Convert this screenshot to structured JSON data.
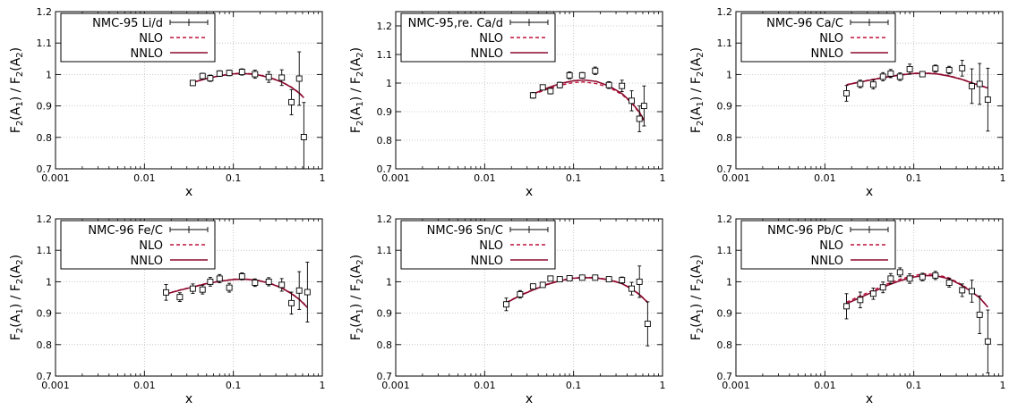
{
  "colors": {
    "data": "#000000",
    "nlo": "#c0103a",
    "nnlo": "#8b0a2e",
    "frame": "#000000",
    "grid": "#bbbbbb"
  },
  "chart_data": [
    {
      "type": "scatter",
      "xlabel": "x",
      "ylabel": "F2(A1) / F2(A2)",
      "ylabel_parts": {
        "F": "F",
        "n": "2",
        "open": "(A",
        "s1": "1",
        "mid": ") / F",
        "n2": "2",
        "open2": "(A",
        "s2": "2",
        "close": ")"
      },
      "xscale": "log",
      "xlim": [
        0.001,
        1
      ],
      "ylim": [
        0.7,
        1.2
      ],
      "grid": true,
      "legend_position": "top-left",
      "xticks": [
        "0.001",
        "0.01",
        "0.1",
        "1"
      ],
      "yticks": [
        "0.7",
        "0.8",
        "0.9",
        "1",
        "1.1",
        "1.2"
      ],
      "legend": [
        "NMC-95 Li/d",
        "NLO",
        "NNLO"
      ],
      "series": [
        {
          "name": "NMC-95 Li/d",
          "x": [
            0.035,
            0.045,
            0.055,
            0.07,
            0.09,
            0.125,
            0.175,
            0.25,
            0.35,
            0.45,
            0.55,
            0.62
          ],
          "y": [
            0.973,
            0.995,
            0.988,
            1.003,
            1.005,
            1.008,
            1.001,
            0.992,
            0.99,
            0.912,
            0.987,
            0.801
          ],
          "err": [
            0.008,
            0.009,
            0.01,
            0.009,
            0.009,
            0.01,
            0.013,
            0.017,
            0.025,
            0.04,
            0.085,
            0.11
          ]
        },
        {
          "name": "NLO",
          "x": [
            0.035,
            0.05,
            0.07,
            0.1,
            0.13,
            0.18,
            0.25,
            0.35,
            0.45,
            0.55,
            0.62
          ],
          "y": [
            0.975,
            0.987,
            0.996,
            1.003,
            1.004,
            1.001,
            0.992,
            0.977,
            0.96,
            0.942,
            0.927
          ]
        },
        {
          "name": "NNLO",
          "x": [
            0.035,
            0.05,
            0.07,
            0.1,
            0.13,
            0.18,
            0.25,
            0.35,
            0.45,
            0.55,
            0.62
          ],
          "y": [
            0.975,
            0.987,
            0.996,
            1.002,
            1.003,
            1.0,
            0.991,
            0.976,
            0.959,
            0.941,
            0.926
          ]
        }
      ]
    },
    {
      "type": "scatter",
      "xlabel": "x",
      "ylabel": "F2(A1) / F2(A2)",
      "ylabel_parts": {
        "F": "F",
        "n": "2",
        "open": "(A",
        "s1": "1",
        "mid": ") / F",
        "n2": "2",
        "open2": "(A",
        "s2": "2",
        "close": ")"
      },
      "xscale": "log",
      "xlim": [
        0.001,
        1
      ],
      "ylim": [
        0.7,
        1.25
      ],
      "grid": true,
      "legend_position": "top-left",
      "xticks": [
        "0.001",
        "0.01",
        "0.1",
        "1"
      ],
      "yticks": [
        "0.7",
        "0.8",
        "0.9",
        "1",
        "1.1",
        "1.2"
      ],
      "legend": [
        "NMC-95,re. Ca/d",
        "NLO",
        "NNLO"
      ],
      "series": [
        {
          "name": "NMC-95,re. Ca/d",
          "x": [
            0.035,
            0.045,
            0.055,
            0.07,
            0.09,
            0.125,
            0.175,
            0.25,
            0.35,
            0.45,
            0.55,
            0.62
          ],
          "y": [
            0.957,
            0.985,
            0.972,
            0.993,
            1.027,
            1.027,
            1.043,
            0.993,
            0.99,
            0.938,
            0.875,
            0.92
          ],
          "err": [
            0.01,
            0.008,
            0.01,
            0.01,
            0.012,
            0.01,
            0.013,
            0.012,
            0.02,
            0.035,
            0.045,
            0.07
          ]
        },
        {
          "name": "NLO",
          "x": [
            0.035,
            0.05,
            0.07,
            0.1,
            0.13,
            0.18,
            0.25,
            0.35,
            0.45,
            0.55,
            0.62
          ],
          "y": [
            0.96,
            0.978,
            0.992,
            1.002,
            1.004,
            0.998,
            0.985,
            0.96,
            0.93,
            0.895,
            0.868
          ]
        },
        {
          "name": "NNLO",
          "x": [
            0.035,
            0.05,
            0.07,
            0.1,
            0.13,
            0.18,
            0.25,
            0.35,
            0.45,
            0.55,
            0.62
          ],
          "y": [
            0.962,
            0.982,
            0.998,
            1.008,
            1.011,
            1.006,
            0.99,
            0.963,
            0.932,
            0.898,
            0.87
          ]
        }
      ]
    },
    {
      "type": "scatter",
      "xlabel": "x",
      "ylabel": "F2(A1) / F2(A2)",
      "ylabel_parts": {
        "F": "F",
        "n": "2",
        "open": "(A",
        "s1": "1",
        "mid": ") / F",
        "n2": "2",
        "open2": "(A",
        "s2": "2",
        "close": ")"
      },
      "xscale": "log",
      "xlim": [
        0.001,
        1
      ],
      "ylim": [
        0.7,
        1.2
      ],
      "grid": true,
      "legend_position": "top-left",
      "xticks": [
        "0.001",
        "0.01",
        "0.1",
        "1"
      ],
      "yticks": [
        "0.7",
        "0.8",
        "0.9",
        "1",
        "1.1",
        "1.2"
      ],
      "legend": [
        "NMC-96 Ca/C",
        "NLO",
        "NNLO"
      ],
      "series": [
        {
          "name": "NMC-96 Ca/C",
          "x": [
            0.0175,
            0.025,
            0.035,
            0.045,
            0.055,
            0.07,
            0.09,
            0.125,
            0.175,
            0.25,
            0.35,
            0.45,
            0.55,
            0.68
          ],
          "y": [
            0.94,
            0.97,
            0.968,
            0.993,
            1.003,
            0.993,
            1.017,
            1.001,
            1.019,
            1.014,
            1.02,
            0.963,
            0.97,
            0.92
          ],
          "err": [
            0.025,
            0.012,
            0.014,
            0.013,
            0.013,
            0.012,
            0.016,
            0.008,
            0.011,
            0.012,
            0.025,
            0.055,
            0.065,
            0.1
          ]
        },
        {
          "name": "NLO",
          "x": [
            0.0175,
            0.025,
            0.035,
            0.05,
            0.07,
            0.1,
            0.13,
            0.18,
            0.25,
            0.35,
            0.45,
            0.55,
            0.68
          ],
          "y": [
            0.968,
            0.977,
            0.985,
            0.993,
            0.999,
            1.004,
            1.005,
            1.003,
            0.996,
            0.985,
            0.974,
            0.966,
            0.958
          ]
        },
        {
          "name": "NNLO",
          "x": [
            0.0175,
            0.025,
            0.035,
            0.05,
            0.07,
            0.1,
            0.13,
            0.18,
            0.25,
            0.35,
            0.45,
            0.55,
            0.68
          ],
          "y": [
            0.967,
            0.976,
            0.984,
            0.992,
            0.998,
            1.003,
            1.004,
            1.002,
            0.995,
            0.984,
            0.973,
            0.965,
            0.957
          ]
        }
      ]
    },
    {
      "type": "scatter",
      "xlabel": "x",
      "ylabel": "F2(A1) / F2(A2)",
      "ylabel_parts": {
        "F": "F",
        "n": "2",
        "open": "(A",
        "s1": "1",
        "mid": ") / F",
        "n2": "2",
        "open2": "(A",
        "s2": "2",
        "close": ")"
      },
      "xscale": "log",
      "xlim": [
        0.001,
        1
      ],
      "ylim": [
        0.7,
        1.2
      ],
      "grid": true,
      "legend_position": "top-left",
      "xticks": [
        "0.001",
        "0.01",
        "0.1",
        "1"
      ],
      "yticks": [
        "0.7",
        "0.8",
        "0.9",
        "1",
        "1.1",
        "1.2"
      ],
      "legend": [
        "NMC-96 Fe/C",
        "NLO",
        "NNLO"
      ],
      "series": [
        {
          "name": "NMC-96 Fe/C",
          "x": [
            0.0175,
            0.025,
            0.035,
            0.045,
            0.055,
            0.07,
            0.09,
            0.125,
            0.175,
            0.25,
            0.35,
            0.45,
            0.55,
            0.68
          ],
          "y": [
            0.966,
            0.951,
            0.978,
            0.975,
            1.0,
            1.01,
            0.981,
            1.017,
            0.997,
            1.0,
            0.99,
            0.932,
            0.972,
            0.967
          ],
          "err": [
            0.025,
            0.014,
            0.015,
            0.014,
            0.014,
            0.013,
            0.014,
            0.011,
            0.012,
            0.013,
            0.02,
            0.035,
            0.06,
            0.095
          ]
        },
        {
          "name": "NLO",
          "x": [
            0.0175,
            0.025,
            0.035,
            0.05,
            0.07,
            0.1,
            0.13,
            0.18,
            0.25,
            0.35,
            0.45,
            0.55,
            0.68
          ],
          "y": [
            0.962,
            0.974,
            0.984,
            0.995,
            1.002,
            1.008,
            1.009,
            1.006,
            0.997,
            0.981,
            0.963,
            0.945,
            0.92
          ]
        },
        {
          "name": "NNLO",
          "x": [
            0.0175,
            0.025,
            0.035,
            0.05,
            0.07,
            0.1,
            0.13,
            0.18,
            0.25,
            0.35,
            0.45,
            0.55,
            0.68
          ],
          "y": [
            0.961,
            0.973,
            0.983,
            0.994,
            1.001,
            1.007,
            1.008,
            1.005,
            0.996,
            0.98,
            0.962,
            0.944,
            0.918
          ]
        }
      ]
    },
    {
      "type": "scatter",
      "xlabel": "x",
      "ylabel": "F2(A1) / F2(A2)",
      "ylabel_parts": {
        "F": "F",
        "n": "2",
        "open": "(A",
        "s1": "1",
        "mid": ") / F",
        "n2": "2",
        "open2": "(A",
        "s2": "2",
        "close": ")"
      },
      "xscale": "log",
      "xlim": [
        0.001,
        1
      ],
      "ylim": [
        0.7,
        1.2
      ],
      "grid": true,
      "legend_position": "top-left",
      "xticks": [
        "0.001",
        "0.01",
        "0.1",
        "1"
      ],
      "yticks": [
        "0.7",
        "0.8",
        "0.9",
        "1",
        "1.1",
        "1.2"
      ],
      "legend": [
        "NMC-96 Sn/C",
        "NLO",
        "NNLO"
      ],
      "series": [
        {
          "name": "NMC-96 Sn/C",
          "x": [
            0.0175,
            0.025,
            0.035,
            0.045,
            0.055,
            0.07,
            0.09,
            0.125,
            0.175,
            0.25,
            0.35,
            0.45,
            0.55,
            0.68
          ],
          "y": [
            0.928,
            0.96,
            0.985,
            0.99,
            1.01,
            1.008,
            1.011,
            1.013,
            1.013,
            1.008,
            1.005,
            0.978,
            1.0,
            0.866
          ],
          "err": [
            0.02,
            0.012,
            0.008,
            0.007,
            0.007,
            0.006,
            0.006,
            0.005,
            0.006,
            0.006,
            0.01,
            0.02,
            0.05,
            0.07
          ]
        },
        {
          "name": "NLO",
          "x": [
            0.0175,
            0.025,
            0.035,
            0.05,
            0.07,
            0.1,
            0.13,
            0.18,
            0.25,
            0.35,
            0.45,
            0.55,
            0.68
          ],
          "y": [
            0.934,
            0.957,
            0.975,
            0.992,
            1.004,
            1.012,
            1.014,
            1.013,
            1.007,
            0.995,
            0.978,
            0.96,
            0.935
          ]
        },
        {
          "name": "NNLO",
          "x": [
            0.0175,
            0.025,
            0.035,
            0.05,
            0.07,
            0.1,
            0.13,
            0.18,
            0.25,
            0.35,
            0.45,
            0.55,
            0.68
          ],
          "y": [
            0.933,
            0.956,
            0.974,
            0.991,
            1.003,
            1.011,
            1.013,
            1.012,
            1.006,
            0.994,
            0.977,
            0.959,
            0.934
          ]
        }
      ]
    },
    {
      "type": "scatter",
      "xlabel": "x",
      "ylabel": "F2(A1) / F2(A2)",
      "ylabel_parts": {
        "F": "F",
        "n": "2",
        "open": "(A",
        "s1": "1",
        "mid": ") / F",
        "n2": "2",
        "open2": "(A",
        "s2": "2",
        "close": ")"
      },
      "xscale": "log",
      "xlim": [
        0.001,
        1
      ],
      "ylim": [
        0.7,
        1.2
      ],
      "grid": true,
      "legend_position": "top-left",
      "xticks": [
        "0.001",
        "0.01",
        "0.1",
        "1"
      ],
      "yticks": [
        "0.7",
        "0.8",
        "0.9",
        "1",
        "1.1",
        "1.2"
      ],
      "legend": [
        "NMC-96 Pb/C",
        "NLO",
        "NNLO"
      ],
      "series": [
        {
          "name": "NMC-96 Pb/C",
          "x": [
            0.0175,
            0.025,
            0.035,
            0.045,
            0.055,
            0.07,
            0.09,
            0.125,
            0.175,
            0.25,
            0.35,
            0.45,
            0.55,
            0.68
          ],
          "y": [
            0.922,
            0.942,
            0.962,
            0.982,
            1.01,
            1.03,
            1.01,
            1.015,
            1.02,
            0.997,
            0.973,
            0.97,
            0.895,
            0.81
          ],
          "err": [
            0.04,
            0.025,
            0.018,
            0.017,
            0.016,
            0.014,
            0.015,
            0.012,
            0.013,
            0.014,
            0.02,
            0.035,
            0.06,
            0.1
          ]
        },
        {
          "name": "NLO",
          "x": [
            0.0175,
            0.025,
            0.035,
            0.05,
            0.07,
            0.1,
            0.13,
            0.18,
            0.25,
            0.35,
            0.45,
            0.55,
            0.68
          ],
          "y": [
            0.935,
            0.955,
            0.973,
            0.993,
            1.008,
            1.02,
            1.025,
            1.023,
            1.012,
            0.99,
            0.968,
            0.95,
            0.92
          ]
        },
        {
          "name": "NNLO",
          "x": [
            0.0175,
            0.025,
            0.035,
            0.05,
            0.07,
            0.1,
            0.13,
            0.18,
            0.25,
            0.35,
            0.45,
            0.55,
            0.68
          ],
          "y": [
            0.93,
            0.95,
            0.968,
            0.988,
            1.003,
            1.015,
            1.02,
            1.019,
            1.009,
            0.988,
            0.967,
            0.949,
            0.919
          ]
        }
      ]
    }
  ]
}
